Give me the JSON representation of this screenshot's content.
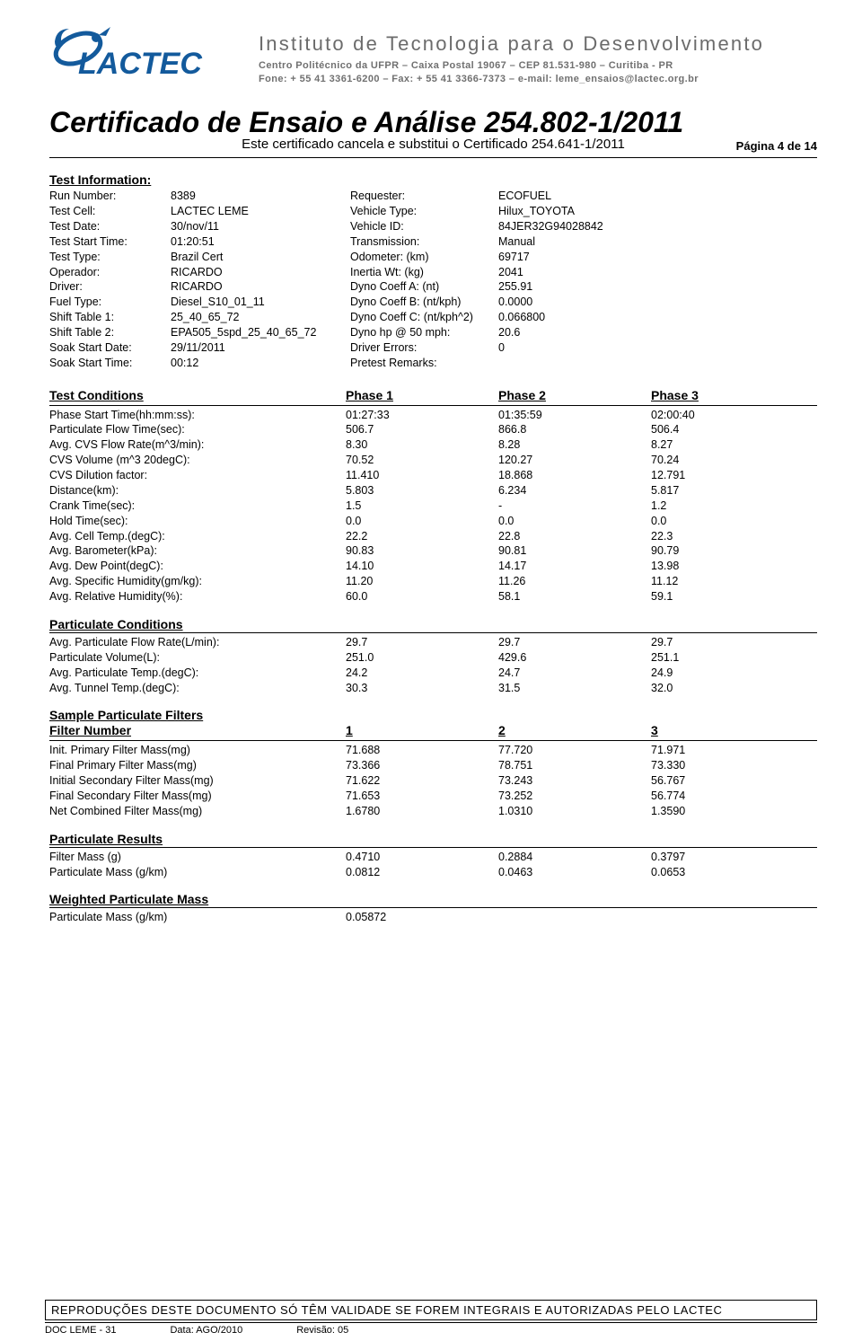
{
  "header": {
    "logo_text": "LACTEC",
    "institute_title": "Instituto de Tecnologia para o Desenvolvimento",
    "institute_line2": "Centro Politécnico da UFPR  –  Caixa Postal 19067  –  CEP 81.531-980  –  Curitiba - PR",
    "institute_line3": "Fone: + 55 41 3361-6200 – Fax: + 55 41 3366-7373 – e-mail: leme_ensaios@lactec.org.br",
    "cert_title": "Certificado de Ensaio e Análise 254.802-1/2011",
    "cert_subtitle": "Este certificado cancela e substitui o Certificado  254.641-1/2011",
    "page_number": "Página 4 de 14"
  },
  "test_info": {
    "heading": "Test Information:",
    "rows": [
      [
        "Run Number:",
        "8389",
        "Requester:",
        "ECOFUEL"
      ],
      [
        "Test Cell:",
        "LACTEC LEME",
        "Vehicle Type:",
        "Hilux_TOYOTA"
      ],
      [
        "Test Date:",
        "30/nov/11",
        "Vehicle ID:",
        "84JER32G94028842"
      ],
      [
        "Test Start Time:",
        "01:20:51",
        "Transmission:",
        "Manual"
      ],
      [
        "Test Type:",
        "Brazil Cert",
        "Odometer: (km)",
        "69717"
      ],
      [
        "Operador:",
        "RICARDO",
        "Inertia Wt: (kg)",
        "2041"
      ],
      [
        "Driver:",
        "RICARDO",
        "Dyno Coeff A: (nt)",
        "255.91"
      ],
      [
        "Fuel Type:",
        "Diesel_S10_01_11",
        "Dyno Coeff B: (nt/kph)",
        "0.0000"
      ],
      [
        "Shift Table 1:",
        "25_40_65_72",
        "Dyno Coeff C: (nt/kph^2)",
        "0.066800"
      ],
      [
        "Shift Table 2:",
        "EPA505_5spd_25_40_65_72",
        "Dyno hp @ 50 mph:",
        "20.6"
      ],
      [
        "Soak Start Date:",
        "29/11/2011",
        "Driver Errors:",
        "0"
      ],
      [
        "Soak Start Time:",
        "00:12",
        "Pretest Remarks:",
        ""
      ]
    ]
  },
  "conditions": {
    "heading": "Test Conditions",
    "phase1": "Phase 1",
    "phase2": "Phase 2",
    "phase3": "Phase 3",
    "rows": [
      [
        "Phase Start Time(hh:mm:ss):",
        "01:27:33",
        "01:35:59",
        "02:00:40"
      ],
      [
        "Particulate Flow Time(sec):",
        "506.7",
        "866.8",
        "506.4"
      ],
      [
        "Avg. CVS Flow Rate(m^3/min):",
        "8.30",
        "8.28",
        "8.27"
      ],
      [
        "CVS Volume (m^3 20degC):",
        "70.52",
        "120.27",
        "70.24"
      ],
      [
        "CVS Dilution factor:",
        "11.410",
        "18.868",
        "12.791"
      ],
      [
        "Distance(km):",
        "5.803",
        "6.234",
        "5.817"
      ],
      [
        "Crank Time(sec):",
        "1.5",
        "-",
        "1.2"
      ],
      [
        "Hold Time(sec):",
        "0.0",
        "0.0",
        "0.0"
      ],
      [
        "Avg. Cell Temp.(degC):",
        "22.2",
        "22.8",
        "22.3"
      ],
      [
        "Avg. Barometer(kPa):",
        "90.83",
        "90.81",
        "90.79"
      ],
      [
        "Avg. Dew Point(degC):",
        "14.10",
        "14.17",
        "13.98"
      ],
      [
        "Avg. Specific Humidity(gm/kg):",
        "11.20",
        "11.26",
        "11.12"
      ],
      [
        "Avg. Relative Humidity(%):",
        "60.0",
        "58.1",
        "59.1"
      ]
    ]
  },
  "particulate_conditions": {
    "heading": "Particulate Conditions",
    "rows": [
      [
        "Avg. Particulate Flow Rate(L/min):",
        "29.7",
        "29.7",
        "29.7"
      ],
      [
        "Particulate Volume(L):",
        "251.0",
        "429.6",
        "251.1"
      ],
      [
        "Avg. Particulate Temp.(degC):",
        "24.2",
        "24.7",
        "24.9"
      ],
      [
        "Avg. Tunnel Temp.(degC):",
        "30.3",
        "31.5",
        "32.0"
      ]
    ]
  },
  "filters": {
    "heading": "Sample Particulate Filters",
    "sub_heading": "Filter Number",
    "col1": "1",
    "col2": "2",
    "col3": "3",
    "rows": [
      [
        "Init. Primary Filter Mass(mg)",
        "71.688",
        "77.720",
        "71.971"
      ],
      [
        "Final Primary Filter Mass(mg)",
        "73.366",
        "78.751",
        "73.330"
      ],
      [
        "Initial Secondary Filter Mass(mg)",
        "71.622",
        "73.243",
        "56.767"
      ],
      [
        "Final Secondary Filter Mass(mg)",
        "71.653",
        "73.252",
        "56.774"
      ],
      [
        "Net Combined Filter Mass(mg)",
        "1.6780",
        "1.0310",
        "1.3590"
      ]
    ]
  },
  "results": {
    "heading": "Particulate Results",
    "rows": [
      [
        "Filter Mass (g)",
        "0.4710",
        "0.2884",
        "0.3797"
      ],
      [
        "Particulate Mass (g/km)",
        "0.0812",
        "0.0463",
        "0.0653"
      ]
    ]
  },
  "weighted": {
    "heading": "Weighted Particulate Mass",
    "rows": [
      [
        "Particulate Mass (g/km)",
        "0.05872",
        "",
        ""
      ]
    ]
  },
  "footer": {
    "notice": "REPRODUÇÕES  DESTE  DOCUMENTO  SÓ  TÊM  VALIDADE  SE  FOREM  INTEGRAIS  E  AUTORIZADAS  PELO  LACTEC",
    "doc": "DOC LEME - 31",
    "date": "Data: AGO/2010",
    "rev": "Revisão: 05"
  },
  "colors": {
    "logo_fill": "#135a9c",
    "text_gray": "#6b6b6b",
    "black": "#000000",
    "white": "#ffffff"
  }
}
